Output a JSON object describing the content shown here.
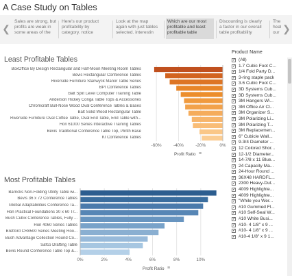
{
  "page": {
    "title": "A Case Study on Tables"
  },
  "story": {
    "prev_icon": "chevron-left-icon",
    "next_icon": "chevron-right-icon",
    "points": [
      {
        "text": "Sales are strong, but profits are weak in some areas of the",
        "active": false
      },
      {
        "text": "Here's our product profitability by category. notice",
        "active": false
      },
      {
        "text": "Look at the map again with just tables selected. interestin",
        "active": false
      },
      {
        "text": "Which are our most profitable and least profitable table",
        "active": true
      },
      {
        "text": "Discounting is clearly a factor in our overall table profitability",
        "active": false
      },
      {
        "text": "The heat our",
        "active": false
      }
    ]
  },
  "filter": {
    "title": "Product Name",
    "items": [
      {
        "label": "(All)",
        "checked": true
      },
      {
        "label": "1.7 Cubic Foot C...",
        "checked": true
      },
      {
        "label": "1/4 Fold Party D...",
        "checked": true
      },
      {
        "label": "3-ring staple pack",
        "checked": true
      },
      {
        "label": "3.6 Cubic Foot C...",
        "checked": true
      },
      {
        "label": "3D Systems Cub...",
        "checked": true
      },
      {
        "label": "3D Systems Cub...",
        "checked": true
      },
      {
        "label": "3M Hangers Wi...",
        "checked": true
      },
      {
        "label": "3M Office Air Cl...",
        "checked": true
      },
      {
        "label": "3M Organizer S...",
        "checked": true
      },
      {
        "label": "3M Polarizing Li...",
        "checked": true
      },
      {
        "label": "3M Polarizing T...",
        "checked": true
      },
      {
        "label": "3M Replacemen...",
        "checked": true
      },
      {
        "label": "6\" Cubicle Wall...",
        "checked": true
      },
      {
        "label": "9-3/4 Diameter ...",
        "checked": true
      },
      {
        "label": "12 Colored Shor...",
        "checked": true
      },
      {
        "label": "12-1/2 Diameter...",
        "checked": true
      },
      {
        "label": "14-7/8 x 11 Blue...",
        "checked": true
      },
      {
        "label": "24 Capacity Ma...",
        "checked": true
      },
      {
        "label": "24-Hour Round ...",
        "checked": true
      },
      {
        "label": "36X48 HARDFL...",
        "checked": true
      },
      {
        "label": "2300 Heavy-Dut...",
        "checked": true
      },
      {
        "label": "4009 Highlighte...",
        "checked": true
      },
      {
        "label": "4009 Highlighte...",
        "checked": true
      },
      {
        "label": "\"While you Wer...",
        "checked": true
      },
      {
        "label": "#10 Gummed Fl...",
        "checked": true
      },
      {
        "label": "#10 Self-Seal W...",
        "checked": true
      },
      {
        "label": "#10 White Busi...",
        "checked": true
      },
      {
        "label": "#10- 4 1/8\" x 9 ...",
        "checked": true
      },
      {
        "label": "#10- 4 1/8\" x 9 ...",
        "checked": true
      },
      {
        "label": "#10-4 1/8\" x 9 1...",
        "checked": true
      }
    ]
  },
  "chart_data": [
    {
      "type": "bar",
      "orientation": "horizontal",
      "title": "Least Profitable Tables",
      "xlabel": "Profit Ratio",
      "xlim": [
        -70,
        0
      ],
      "xticks": [
        "-60%",
        "-40%",
        "-20%",
        "0%"
      ],
      "xtick_values": [
        -60,
        -40,
        -20,
        0
      ],
      "categories": [
        "BoxOffice By Design Rectangular and Half-Moon Meeting Room Tables",
        "Bevis Rectangular Conference Tables",
        "Riverside Furniture Stanwyck Manor Table Series",
        "BPI Conference Tables",
        "Balt Split Level Computer Training Table",
        "Anderson Hickey Conga Table Tops & Accessories",
        "Chromcraft Bull-Nose Wood Oval Conference Tables & Bases",
        "Balt Solid Wood Rectangular Table",
        "Riverside Furniture Oval Coffee Table, Oval End Table, End Table with...",
        "Hon 61000 Series Interactive Training Tables",
        "Bevis Traditional Conference Table Top, Plinth Base",
        "KI Conference Tables"
      ],
      "values": [
        -62,
        -52,
        -48,
        -42,
        -38,
        -35,
        -34,
        -31,
        -28,
        -27,
        -21,
        -19
      ],
      "colors": [
        "#c0501e",
        "#d2631f",
        "#dd7524",
        "#e88628",
        "#ec8e2c",
        "#f09a3e",
        "#f2a24b",
        "#f5ac5c",
        "#f7b56b",
        "#f9bd77",
        "#fac788",
        "#fbcd93"
      ]
    },
    {
      "type": "bar",
      "orientation": "horizontal",
      "title": "Most Profitable Tables",
      "xlabel": "Profit Ratio",
      "xlim": [
        0,
        12
      ],
      "xticks": [
        "0%",
        "2%",
        "4%",
        "6%",
        "8%",
        "10%"
      ],
      "xtick_values": [
        0,
        2,
        4,
        6,
        8,
        10
      ],
      "categories": [
        "Barricks Non-Folding Utility Table wi...",
        "Bevis 36 x 72 Conference Tables",
        "Global Adaptabilities Conference Ta...",
        "Hon Practical Foundations 30 x 60 Tr...",
        "Bush Cubix Conference Tables, Fully ...",
        "Hon 4060 Series Tables",
        "Bretford CR8500 Series Meeting Roo...",
        "Bush Advantage Collection Round Co...",
        "Safco Drafting Table",
        "Bevis Round Conference Table Top &..."
      ],
      "values": [
        11.3,
        10.6,
        10.2,
        9.8,
        8.6,
        7.0,
        6.5,
        5.6,
        5.2,
        4.1
      ],
      "colors": [
        "#2c5d8f",
        "#3a6d9e",
        "#4a7aab",
        "#5786b5",
        "#6895c0",
        "#78a2c9",
        "#8aafd1",
        "#98bada",
        "#a6c6e1",
        "#b4d0e8"
      ]
    }
  ]
}
